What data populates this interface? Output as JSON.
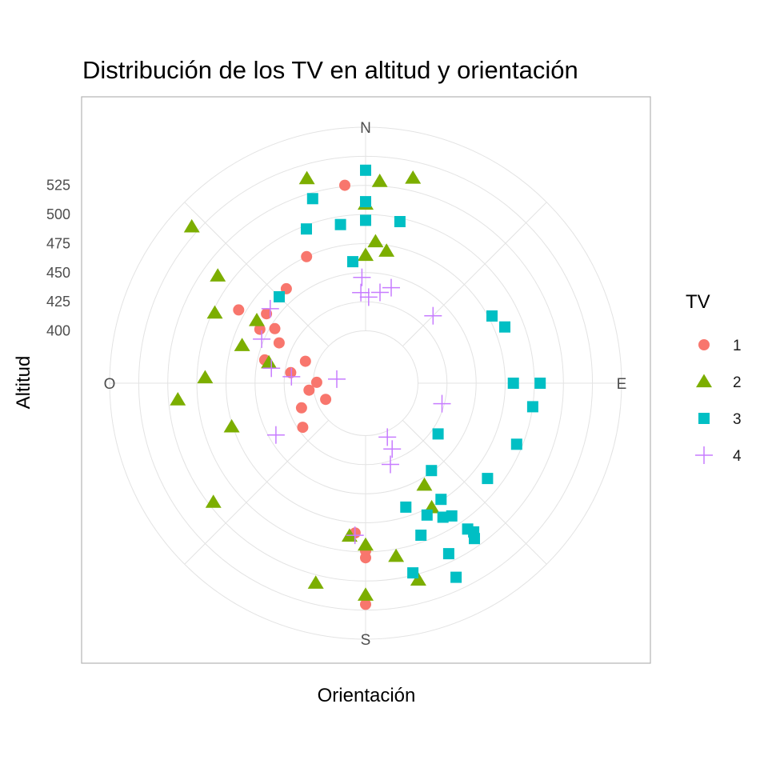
{
  "chart_data": {
    "type": "scatter",
    "coordinate_system": "polar",
    "title": "Distribución de los TV en altitud y orientación",
    "xlabel": "Orientación",
    "ylabel": "Altitud",
    "legend_title": "TV",
    "legend_position": "right",
    "direction_labels": [
      "N",
      "E",
      "S",
      "O"
    ],
    "radial_ticks": [
      400,
      425,
      450,
      475,
      500,
      525
    ],
    "radial_range": [
      355,
      575
    ],
    "angle_units": "degrees clockwise from N",
    "grid": true,
    "series": [
      {
        "name": "1",
        "shape": "circle",
        "color": "#F8766D",
        "points": [
          {
            "angle": 354,
            "altitude": 526
          },
          {
            "angle": 335,
            "altitude": 475
          },
          {
            "angle": 320,
            "altitude": 461
          },
          {
            "angle": 300,
            "altitude": 481
          },
          {
            "angle": 305,
            "altitude": 459
          },
          {
            "angle": 297,
            "altitude": 457
          },
          {
            "angle": 301,
            "altitude": 446
          },
          {
            "angle": 295,
            "altitude": 437
          },
          {
            "angle": 283,
            "altitude": 444
          },
          {
            "angle": 290,
            "altitude": 410
          },
          {
            "angle": 278,
            "altitude": 420
          },
          {
            "angle": 271,
            "altitude": 397
          },
          {
            "angle": 263,
            "altitude": 404
          },
          {
            "angle": 248,
            "altitude": 392
          },
          {
            "angle": 249,
            "altitude": 414
          },
          {
            "angle": 235,
            "altitude": 421
          },
          {
            "angle": 184,
            "altitude": 484
          },
          {
            "angle": 180,
            "altitude": 499
          },
          {
            "angle": 180,
            "altitude": 505
          },
          {
            "angle": 180,
            "altitude": 545
          }
        ]
      },
      {
        "name": "2",
        "shape": "triangle",
        "color": "#7CAE00",
        "points": [
          {
            "angle": 4,
            "altitude": 529
          },
          {
            "angle": 13,
            "altitude": 536
          },
          {
            "angle": 0,
            "altitude": 509
          },
          {
            "angle": 4,
            "altitude": 477
          },
          {
            "angle": 9,
            "altitude": 470
          },
          {
            "angle": 0,
            "altitude": 465
          },
          {
            "angle": 344,
            "altitude": 538
          },
          {
            "angle": 312,
            "altitude": 556
          },
          {
            "angle": 306,
            "altitude": 512
          },
          {
            "angle": 295,
            "altitude": 498
          },
          {
            "angle": 300,
            "altitude": 463
          },
          {
            "angle": 287,
            "altitude": 466
          },
          {
            "angle": 282,
            "altitude": 440
          },
          {
            "angle": 272,
            "altitude": 493
          },
          {
            "angle": 265,
            "altitude": 517
          },
          {
            "angle": 252,
            "altitude": 476
          },
          {
            "angle": 232,
            "altitude": 521
          },
          {
            "angle": 150,
            "altitude": 456
          },
          {
            "angle": 152,
            "altitude": 476
          },
          {
            "angle": 186,
            "altitude": 487
          },
          {
            "angle": 180,
            "altitude": 494
          },
          {
            "angle": 170,
            "altitude": 506
          },
          {
            "angle": 165,
            "altitude": 530
          },
          {
            "angle": 194,
            "altitude": 532
          },
          {
            "angle": 180,
            "altitude": 537
          }
        ]
      },
      {
        "name": "3",
        "shape": "square",
        "color": "#00BFC4",
        "points": [
          {
            "angle": 0,
            "altitude": 538
          },
          {
            "angle": 0,
            "altitude": 511
          },
          {
            "angle": 0,
            "altitude": 495
          },
          {
            "angle": 344,
            "altitude": 520
          },
          {
            "angle": 339,
            "altitude": 497
          },
          {
            "angle": 351,
            "altitude": 493
          },
          {
            "angle": 12,
            "altitude": 497
          },
          {
            "angle": 354,
            "altitude": 460
          },
          {
            "angle": 315,
            "altitude": 460
          },
          {
            "angle": 62,
            "altitude": 478
          },
          {
            "angle": 68,
            "altitude": 484
          },
          {
            "angle": 90,
            "altitude": 482
          },
          {
            "angle": 90,
            "altitude": 505
          },
          {
            "angle": 98,
            "altitude": 500
          },
          {
            "angle": 112,
            "altitude": 495
          },
          {
            "angle": 128,
            "altitude": 488
          },
          {
            "angle": 125,
            "altitude": 431
          },
          {
            "angle": 143,
            "altitude": 449
          },
          {
            "angle": 147,
            "altitude": 474
          },
          {
            "angle": 162,
            "altitude": 467
          },
          {
            "angle": 155,
            "altitude": 480
          },
          {
            "angle": 150,
            "altitude": 488
          },
          {
            "angle": 147,
            "altitude": 491
          },
          {
            "angle": 160,
            "altitude": 494
          },
          {
            "angle": 145,
            "altitude": 508
          },
          {
            "angle": 144,
            "altitude": 513
          },
          {
            "angle": 145,
            "altitude": 518
          },
          {
            "angle": 154,
            "altitude": 518
          },
          {
            "angle": 166,
            "altitude": 523
          },
          {
            "angle": 155,
            "altitude": 539
          }
        ]
      },
      {
        "name": "4",
        "shape": "plus",
        "color": "#C77CFF",
        "points": [
          {
            "angle": 9,
            "altitude": 434
          },
          {
            "angle": 15,
            "altitude": 440
          },
          {
            "angle": 2,
            "altitude": 429
          },
          {
            "angle": 358,
            "altitude": 446
          },
          {
            "angle": 357,
            "altitude": 433
          },
          {
            "angle": 45,
            "altitude": 437
          },
          {
            "angle": 308,
            "altitude": 459
          },
          {
            "angle": 293,
            "altitude": 452
          },
          {
            "angle": 279,
            "altitude": 437
          },
          {
            "angle": 275,
            "altitude": 419
          },
          {
            "angle": 278,
            "altitude": 380
          },
          {
            "angle": 105,
            "altitude": 423
          },
          {
            "angle": 158,
            "altitude": 405
          },
          {
            "angle": 158,
            "altitude": 416
          },
          {
            "angle": 163,
            "altitude": 428
          },
          {
            "angle": 240,
            "altitude": 444
          },
          {
            "angle": 184,
            "altitude": 486
          }
        ]
      }
    ]
  }
}
